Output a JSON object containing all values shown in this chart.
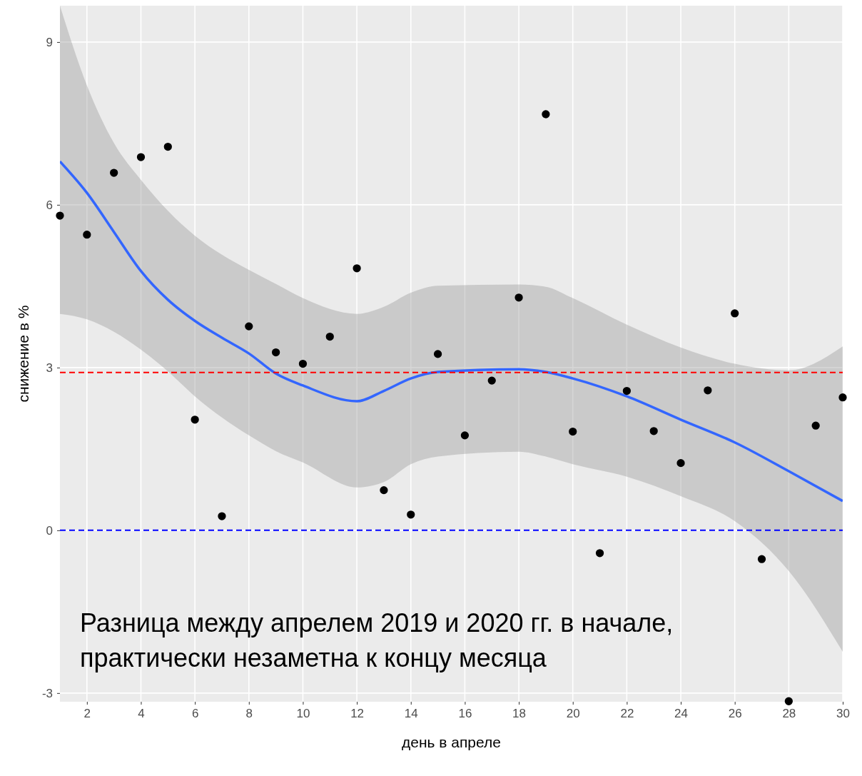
{
  "chart_data": {
    "type": "scatter",
    "xlabel": "день в апреле",
    "ylabel": "снижение в %",
    "xlim": [
      1,
      30
    ],
    "ylim": [
      -3.16,
      9.67
    ],
    "xticks": [
      2,
      4,
      6,
      8,
      10,
      12,
      14,
      16,
      18,
      20,
      22,
      24,
      26,
      28,
      30
    ],
    "yticks": [
      -3,
      0,
      3,
      6,
      9
    ],
    "grid": true,
    "series": [
      {
        "marker": "circle",
        "color": "#000000",
        "x": [
          1,
          2,
          3,
          4,
          5,
          6,
          7,
          8,
          9,
          10,
          11,
          12,
          13,
          14,
          15,
          16,
          17,
          18,
          19,
          20,
          21,
          22,
          23,
          24,
          25,
          26,
          27,
          28,
          29,
          30
        ],
        "values": [
          5.8,
          5.45,
          6.59,
          6.88,
          7.07,
          2.04,
          0.26,
          3.76,
          3.28,
          3.07,
          3.57,
          4.83,
          0.74,
          0.29,
          3.25,
          1.75,
          2.76,
          4.29,
          7.67,
          1.82,
          -0.42,
          2.57,
          1.83,
          1.24,
          2.58,
          4.0,
          -0.53,
          -3.15,
          1.93,
          2.45
        ]
      },
      {
        "type": "line",
        "color": "#3366ff",
        "x": [
          1,
          2,
          3,
          4,
          5,
          6,
          7,
          8,
          9,
          10,
          12,
          13,
          14,
          15,
          18,
          19,
          20,
          22,
          24,
          26,
          28,
          30
        ],
        "values": [
          6.8,
          6.22,
          5.5,
          4.78,
          4.25,
          3.86,
          3.55,
          3.26,
          2.89,
          2.67,
          2.38,
          2.57,
          2.8,
          2.92,
          2.97,
          2.92,
          2.8,
          2.47,
          2.04,
          1.62,
          1.09,
          0.54
        ],
        "lower": [
          3.99,
          3.89,
          3.66,
          3.33,
          2.93,
          2.47,
          2.08,
          1.75,
          1.46,
          1.25,
          0.79,
          0.89,
          1.22,
          1.36,
          1.45,
          1.36,
          1.22,
          0.99,
          0.63,
          0.17,
          -0.75,
          -2.24
        ],
        "upper": [
          9.67,
          8.2,
          7.14,
          6.46,
          5.89,
          5.43,
          5.08,
          4.8,
          4.54,
          4.28,
          3.99,
          4.12,
          4.38,
          4.51,
          4.53,
          4.49,
          4.28,
          3.79,
          3.37,
          3.07,
          2.95,
          3.39
        ]
      }
    ],
    "ref_lines": [
      {
        "axis": "y",
        "value": 2.91,
        "color": "#ff0000",
        "line_style": "dashed"
      },
      {
        "axis": "y",
        "value": 0,
        "color": "#0000ff",
        "line_style": "dashed"
      }
    ],
    "annotations": [
      "Разница между апрелем 2019 и 2020 гг. в начале,\nпрактически незаметна к концу месяца"
    ]
  }
}
